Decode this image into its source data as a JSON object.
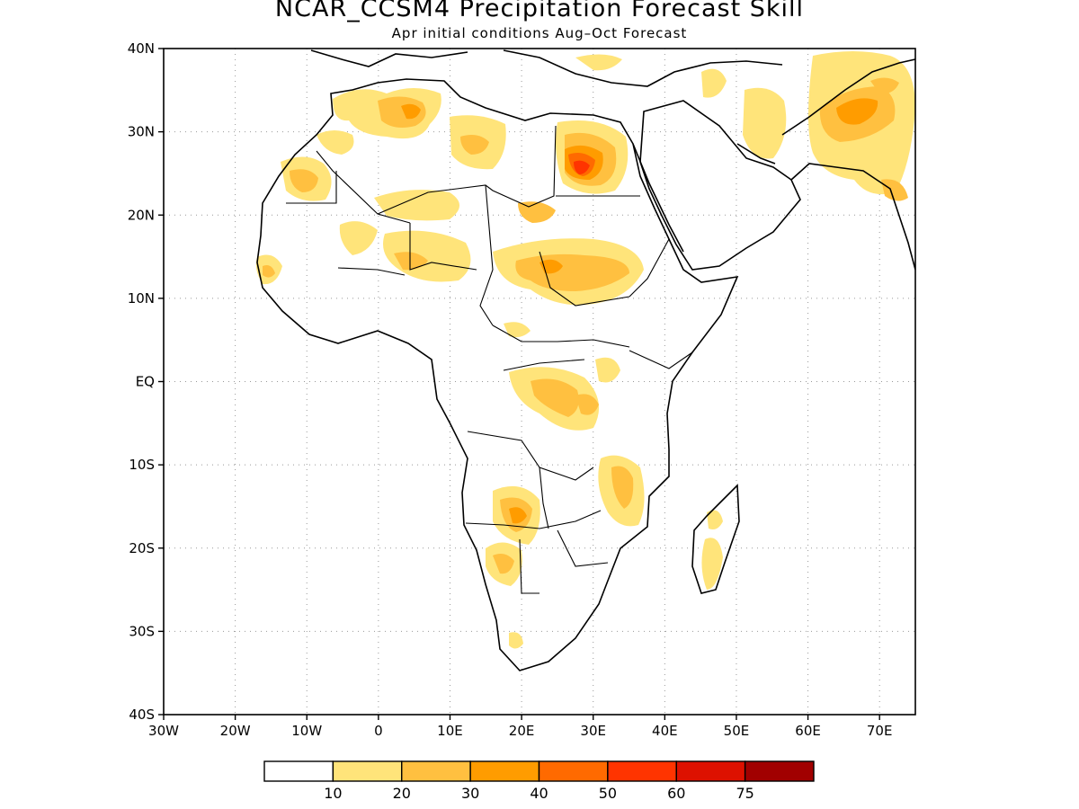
{
  "title": "NCAR_CCSM4 Precipitation Forecast Skill",
  "subtitle": "Apr initial conditions  Aug–Oct Forecast",
  "map": {
    "extent": {
      "lon": [
        -30,
        75
      ],
      "lat": [
        -40,
        40
      ]
    },
    "lon_ticks": [
      {
        "value": -30,
        "label": "30W"
      },
      {
        "value": -20,
        "label": "20W"
      },
      {
        "value": -10,
        "label": "10W"
      },
      {
        "value": 0,
        "label": "0"
      },
      {
        "value": 10,
        "label": "10E"
      },
      {
        "value": 20,
        "label": "20E"
      },
      {
        "value": 30,
        "label": "30E"
      },
      {
        "value": 40,
        "label": "40E"
      },
      {
        "value": 50,
        "label": "50E"
      },
      {
        "value": 60,
        "label": "60E"
      },
      {
        "value": 70,
        "label": "70E"
      }
    ],
    "lat_ticks": [
      {
        "value": 40,
        "label": "40N"
      },
      {
        "value": 30,
        "label": "30N"
      },
      {
        "value": 20,
        "label": "20N"
      },
      {
        "value": 10,
        "label": "10N"
      },
      {
        "value": 0,
        "label": "EQ"
      },
      {
        "value": -10,
        "label": "10S"
      },
      {
        "value": -20,
        "label": "20S"
      },
      {
        "value": -30,
        "label": "30S"
      },
      {
        "value": -40,
        "label": "40S"
      }
    ],
    "grid": "dotted"
  },
  "colorbar": {
    "colors": [
      "#ffffff",
      "#ffe47a",
      "#ffc040",
      "#ff9c00",
      "#ff6a00",
      "#ff3400",
      "#dd1100",
      "#a10000"
    ],
    "labels": [
      "10",
      "20",
      "30",
      "40",
      "50",
      "60",
      "75"
    ]
  }
}
